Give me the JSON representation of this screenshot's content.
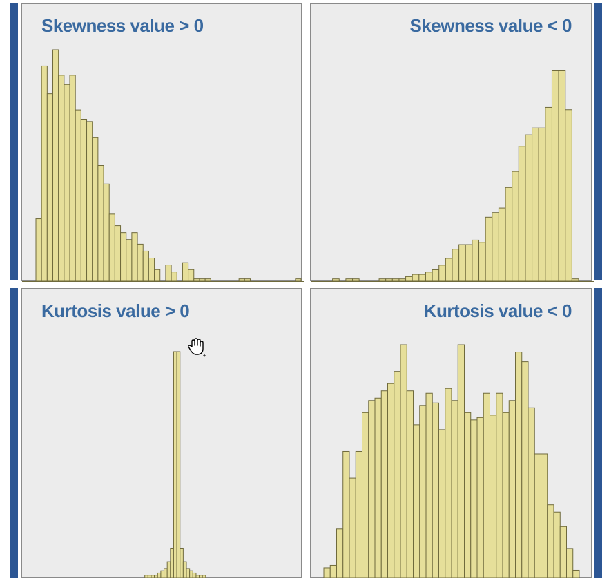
{
  "colors": {
    "accent": "#2c5694",
    "panel_bg": "#ececec",
    "panel_border": "#8a8a8a",
    "bar_fill": "#e6df9a",
    "bar_stroke": "#6f6a3c",
    "title": "#3a6aa0"
  },
  "cursor_icon": "hand-cursor-icon",
  "chart_data": [
    {
      "type": "bar",
      "title": "Skewness value > 0",
      "ylim": [
        0,
        100
      ],
      "values": [
        27,
        93,
        81,
        100,
        89,
        85,
        89,
        74,
        70,
        69,
        62,
        50,
        42,
        29,
        24,
        21,
        18,
        21,
        16,
        13,
        10,
        5,
        0,
        7,
        4,
        0,
        8,
        5,
        1,
        1,
        1,
        0,
        0,
        0,
        0,
        0,
        1,
        1,
        0,
        0,
        0,
        0,
        0,
        0,
        0,
        0,
        1
      ]
    },
    {
      "type": "bar",
      "title": "Skewness value < 0",
      "ylim": [
        0,
        100
      ],
      "values": [
        0,
        1,
        0,
        1,
        1,
        0,
        0,
        0,
        1,
        1,
        1,
        1,
        2,
        3,
        3,
        4,
        5,
        7,
        10,
        14,
        16,
        16,
        18,
        17,
        28,
        30,
        32,
        41,
        48,
        59,
        64,
        67,
        67,
        76,
        92,
        92,
        75,
        1
      ]
    },
    {
      "type": "bar",
      "title": "Kurtosis value > 0",
      "ylim": [
        0,
        100
      ],
      "values": [
        0,
        0,
        0,
        0,
        0,
        0,
        0,
        0,
        0,
        0,
        0,
        0,
        0,
        0,
        0,
        0,
        0,
        0,
        0,
        0,
        0,
        0,
        0,
        0,
        0,
        0,
        0,
        0,
        0,
        0,
        0,
        0,
        0,
        0,
        1,
        1,
        1,
        1,
        2,
        3,
        4,
        7,
        13,
        100,
        100,
        13,
        7,
        4,
        3,
        2,
        1,
        1,
        1,
        0,
        0,
        0,
        0,
        0,
        0,
        0,
        0,
        0,
        0,
        0,
        0,
        0,
        0,
        0,
        0,
        0,
        0,
        0,
        0,
        0,
        0,
        0,
        0,
        0,
        0,
        0,
        0,
        0,
        0
      ]
    },
    {
      "type": "bar",
      "title": "Kurtosis value < 0",
      "ylim": [
        0,
        100
      ],
      "values": [
        4,
        5,
        20,
        52,
        41,
        52,
        68,
        73,
        74,
        77,
        80,
        85,
        96,
        77,
        63,
        71,
        76,
        72,
        61,
        78,
        73,
        96,
        68,
        65,
        66,
        76,
        67,
        76,
        68,
        73,
        93,
        89,
        70,
        51,
        51,
        30,
        27,
        21,
        12,
        3
      ]
    }
  ]
}
